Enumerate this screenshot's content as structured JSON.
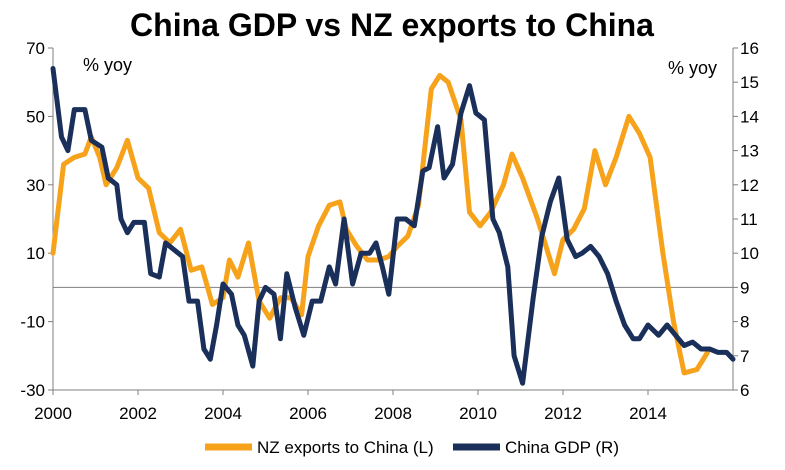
{
  "chart_data": {
    "type": "line",
    "title": "China GDP vs NZ exports to China",
    "left_axis": {
      "unit_label": "% yoy",
      "range": [
        -30,
        70
      ],
      "ticks": [
        -30,
        -10,
        10,
        30,
        50,
        70
      ]
    },
    "right_axis": {
      "unit_label": "% yoy",
      "range": [
        6,
        16
      ],
      "ticks": [
        6,
        7,
        8,
        9,
        10,
        11,
        12,
        13,
        14,
        15,
        16
      ]
    },
    "x_axis": {
      "range": [
        2000,
        2016
      ],
      "ticks": [
        2000,
        2002,
        2004,
        2006,
        2008,
        2010,
        2012,
        2014
      ]
    },
    "zero_line": 0,
    "grid": false,
    "legend_position": "bottom",
    "series": [
      {
        "name": "NZ exports to China (L)",
        "axis": "left",
        "color": "#f7a21b",
        "points": [
          [
            2000.0,
            10
          ],
          [
            2000.25,
            36
          ],
          [
            2000.5,
            38
          ],
          [
            2000.75,
            39
          ],
          [
            2000.9,
            44
          ],
          [
            2001.1,
            38
          ],
          [
            2001.25,
            30
          ],
          [
            2001.5,
            35
          ],
          [
            2001.75,
            43
          ],
          [
            2002.0,
            32
          ],
          [
            2002.25,
            29
          ],
          [
            2002.5,
            16
          ],
          [
            2002.75,
            13
          ],
          [
            2003.0,
            17
          ],
          [
            2003.25,
            5
          ],
          [
            2003.5,
            6
          ],
          [
            2003.75,
            -5
          ],
          [
            2004.0,
            -3
          ],
          [
            2004.15,
            8
          ],
          [
            2004.35,
            3
          ],
          [
            2004.6,
            13
          ],
          [
            2004.85,
            -4
          ],
          [
            2005.1,
            -9
          ],
          [
            2005.35,
            -3
          ],
          [
            2005.6,
            -3
          ],
          [
            2005.85,
            -8
          ],
          [
            2006.0,
            9
          ],
          [
            2006.25,
            18
          ],
          [
            2006.5,
            24
          ],
          [
            2006.75,
            25
          ],
          [
            2006.9,
            17
          ],
          [
            2007.15,
            12
          ],
          [
            2007.4,
            8
          ],
          [
            2007.65,
            8
          ],
          [
            2007.9,
            9
          ],
          [
            2008.1,
            12
          ],
          [
            2008.35,
            15
          ],
          [
            2008.6,
            24
          ],
          [
            2008.9,
            58
          ],
          [
            2009.1,
            62
          ],
          [
            2009.3,
            60
          ],
          [
            2009.6,
            49
          ],
          [
            2009.8,
            22
          ],
          [
            2010.05,
            18
          ],
          [
            2010.3,
            22
          ],
          [
            2010.6,
            30
          ],
          [
            2010.8,
            39
          ],
          [
            2011.05,
            32
          ],
          [
            2011.4,
            20
          ],
          [
            2011.6,
            12
          ],
          [
            2011.8,
            4
          ],
          [
            2012.0,
            14
          ],
          [
            2012.25,
            17
          ],
          [
            2012.5,
            23
          ],
          [
            2012.75,
            40
          ],
          [
            2013.0,
            30
          ],
          [
            2013.25,
            38
          ],
          [
            2013.55,
            50
          ],
          [
            2013.8,
            45
          ],
          [
            2014.05,
            38
          ],
          [
            2014.35,
            10
          ],
          [
            2014.6,
            -10
          ],
          [
            2014.85,
            -25
          ],
          [
            2015.15,
            -24
          ],
          [
            2015.4,
            -19
          ]
        ]
      },
      {
        "name": "China GDP (R)",
        "axis": "right",
        "color": "#1a2f5a",
        "points": [
          [
            2000.0,
            15.4
          ],
          [
            2000.2,
            13.4
          ],
          [
            2000.35,
            13.0
          ],
          [
            2000.5,
            14.2
          ],
          [
            2000.75,
            14.2
          ],
          [
            2000.9,
            13.3
          ],
          [
            2001.15,
            13.1
          ],
          [
            2001.3,
            12.2
          ],
          [
            2001.5,
            12.0
          ],
          [
            2001.6,
            11.0
          ],
          [
            2001.75,
            10.6
          ],
          [
            2001.9,
            10.9
          ],
          [
            2002.15,
            10.9
          ],
          [
            2002.3,
            9.4
          ],
          [
            2002.5,
            9.3
          ],
          [
            2002.65,
            10.3
          ],
          [
            2002.85,
            10.1
          ],
          [
            2003.05,
            9.9
          ],
          [
            2003.2,
            8.6
          ],
          [
            2003.4,
            8.6
          ],
          [
            2003.55,
            7.2
          ],
          [
            2003.7,
            6.9
          ],
          [
            2003.85,
            7.9
          ],
          [
            2004.0,
            9.1
          ],
          [
            2004.2,
            8.8
          ],
          [
            2004.35,
            7.9
          ],
          [
            2004.5,
            7.6
          ],
          [
            2004.7,
            6.7
          ],
          [
            2004.85,
            8.6
          ],
          [
            2005.0,
            9.0
          ],
          [
            2005.2,
            8.8
          ],
          [
            2005.35,
            7.5
          ],
          [
            2005.5,
            9.4
          ],
          [
            2005.7,
            8.4
          ],
          [
            2005.9,
            7.6
          ],
          [
            2006.1,
            8.6
          ],
          [
            2006.3,
            8.6
          ],
          [
            2006.5,
            9.6
          ],
          [
            2006.65,
            9.1
          ],
          [
            2006.85,
            11.0
          ],
          [
            2007.05,
            9.1
          ],
          [
            2007.25,
            10.0
          ],
          [
            2007.45,
            10.0
          ],
          [
            2007.6,
            10.3
          ],
          [
            2007.75,
            9.6
          ],
          [
            2007.9,
            8.8
          ],
          [
            2008.1,
            11.0
          ],
          [
            2008.3,
            11.0
          ],
          [
            2008.5,
            10.8
          ],
          [
            2008.7,
            12.4
          ],
          [
            2008.85,
            12.5
          ],
          [
            2009.05,
            13.7
          ],
          [
            2009.2,
            12.2
          ],
          [
            2009.4,
            12.6
          ],
          [
            2009.6,
            14.1
          ],
          [
            2009.8,
            14.9
          ],
          [
            2009.95,
            14.1
          ],
          [
            2010.15,
            13.9
          ],
          [
            2010.35,
            11.0
          ],
          [
            2010.5,
            10.6
          ],
          [
            2010.7,
            9.6
          ],
          [
            2010.85,
            7.0
          ],
          [
            2011.05,
            6.2
          ],
          [
            2011.3,
            8.7
          ],
          [
            2011.5,
            10.5
          ],
          [
            2011.7,
            11.5
          ],
          [
            2011.9,
            12.2
          ],
          [
            2012.1,
            10.4
          ],
          [
            2012.3,
            9.9
          ],
          [
            2012.45,
            10.0
          ],
          [
            2012.65,
            10.2
          ],
          [
            2012.85,
            9.9
          ],
          [
            2013.05,
            9.4
          ],
          [
            2013.25,
            8.6
          ],
          [
            2013.45,
            7.9
          ],
          [
            2013.65,
            7.5
          ],
          [
            2013.8,
            7.5
          ],
          [
            2014.0,
            7.9
          ],
          [
            2014.25,
            7.6
          ],
          [
            2014.45,
            7.9
          ],
          [
            2014.65,
            7.6
          ],
          [
            2014.85,
            7.3
          ],
          [
            2015.05,
            7.4
          ],
          [
            2015.25,
            7.2
          ],
          [
            2015.45,
            7.2
          ],
          [
            2015.65,
            7.1
          ],
          [
            2015.85,
            7.1
          ],
          [
            2016.0,
            6.9
          ]
        ]
      }
    ]
  }
}
